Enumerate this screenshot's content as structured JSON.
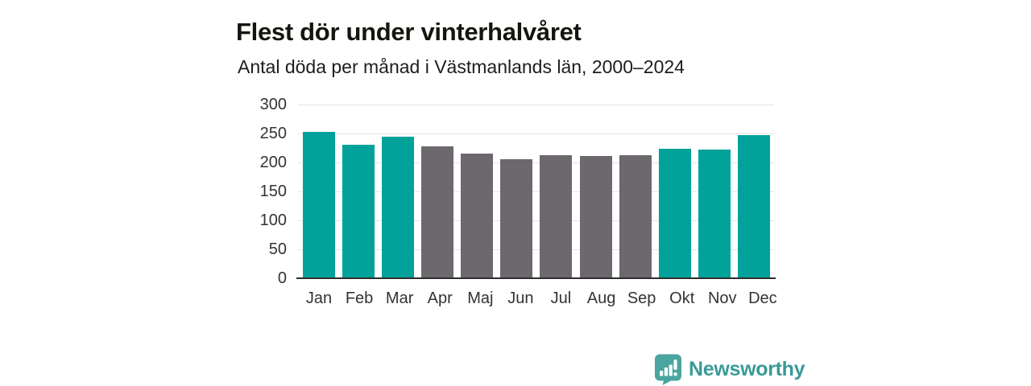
{
  "chart_data": {
    "type": "bar",
    "title": "Flest dör under vinterhalvåret",
    "subtitle": "Antal döda per månad i Västmanlands län, 2000–2024",
    "categories": [
      "Jan",
      "Feb",
      "Mar",
      "Apr",
      "Maj",
      "Jun",
      "Jul",
      "Aug",
      "Sep",
      "Okt",
      "Nov",
      "Dec"
    ],
    "values": [
      253,
      230,
      244,
      228,
      216,
      206,
      213,
      211,
      213,
      224,
      222,
      247
    ],
    "bar_groups": [
      "winter",
      "winter",
      "winter",
      "summer",
      "summer",
      "summer",
      "summer",
      "summer",
      "summer",
      "winter",
      "winter",
      "winter"
    ],
    "series_colors": {
      "winter": "#00a29a",
      "summer": "#6c686d"
    },
    "xlabel": "",
    "ylabel": "",
    "ylim": [
      0,
      300
    ],
    "yticks": [
      0,
      50,
      100,
      150,
      200,
      250,
      300
    ],
    "grid": true,
    "legend": "none"
  },
  "footer": {
    "brand": "Newsworthy",
    "brand_color": "#399a97",
    "logo_icon": "bar-chart-speech-bubble",
    "logo_fill": "#4aa5a0"
  }
}
